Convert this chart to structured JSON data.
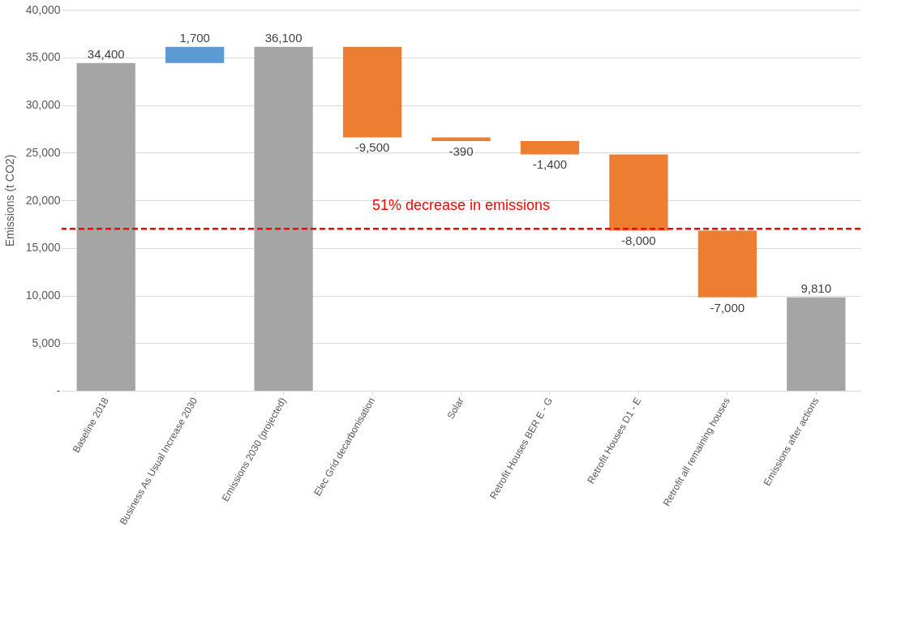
{
  "chart_data": {
    "type": "bar",
    "ylabel": "Emissions (t CO2)",
    "categories": [
      "Baseline 2018",
      "Business As Usual Increase 2030",
      "Emissions 2030 (projected)",
      "Elec Grid decarbonisation",
      "Solar",
      "Retrofit Houses BER E - G",
      "Retrofit Houses D1 - E",
      "Retrofit all remaining houses",
      "Emissions after actions"
    ],
    "values": [
      34400,
      1700,
      36100,
      -9500,
      -390,
      -1400,
      -8000,
      -7000,
      9810
    ],
    "base": [
      0,
      34400,
      0,
      36100,
      26600,
      26210,
      24810,
      16810,
      0
    ],
    "colors": [
      "#a5a5a5",
      "#5b9bd5",
      "#a5a5a5",
      "#ed7d31",
      "#ed7d31",
      "#ed7d31",
      "#ed7d31",
      "#ed7d31",
      "#a5a5a5"
    ],
    "value_labels": [
      "34,400",
      "1,700",
      "36,100",
      "-9,500",
      "-390",
      "-1,400",
      "-8,000",
      "-7,000",
      "9,810"
    ],
    "ylim": [
      0,
      40000
    ],
    "yticks": [
      {
        "value": 0,
        "label": "-"
      },
      {
        "value": 5000,
        "label": "5,000"
      },
      {
        "value": 10000,
        "label": "10,000"
      },
      {
        "value": 15000,
        "label": "15,000"
      },
      {
        "value": 20000,
        "label": "20,000"
      },
      {
        "value": 25000,
        "label": "25,000"
      },
      {
        "value": 30000,
        "label": "30,000"
      },
      {
        "value": 35000,
        "label": "35,000"
      },
      {
        "value": 40000,
        "label": "40,000"
      }
    ],
    "ref_lines": [
      {
        "axis": "y",
        "value": 17000,
        "label": "51% decrease in emissions",
        "color": "#ff0000",
        "line_style": "dashed"
      }
    ],
    "grid": "y"
  }
}
